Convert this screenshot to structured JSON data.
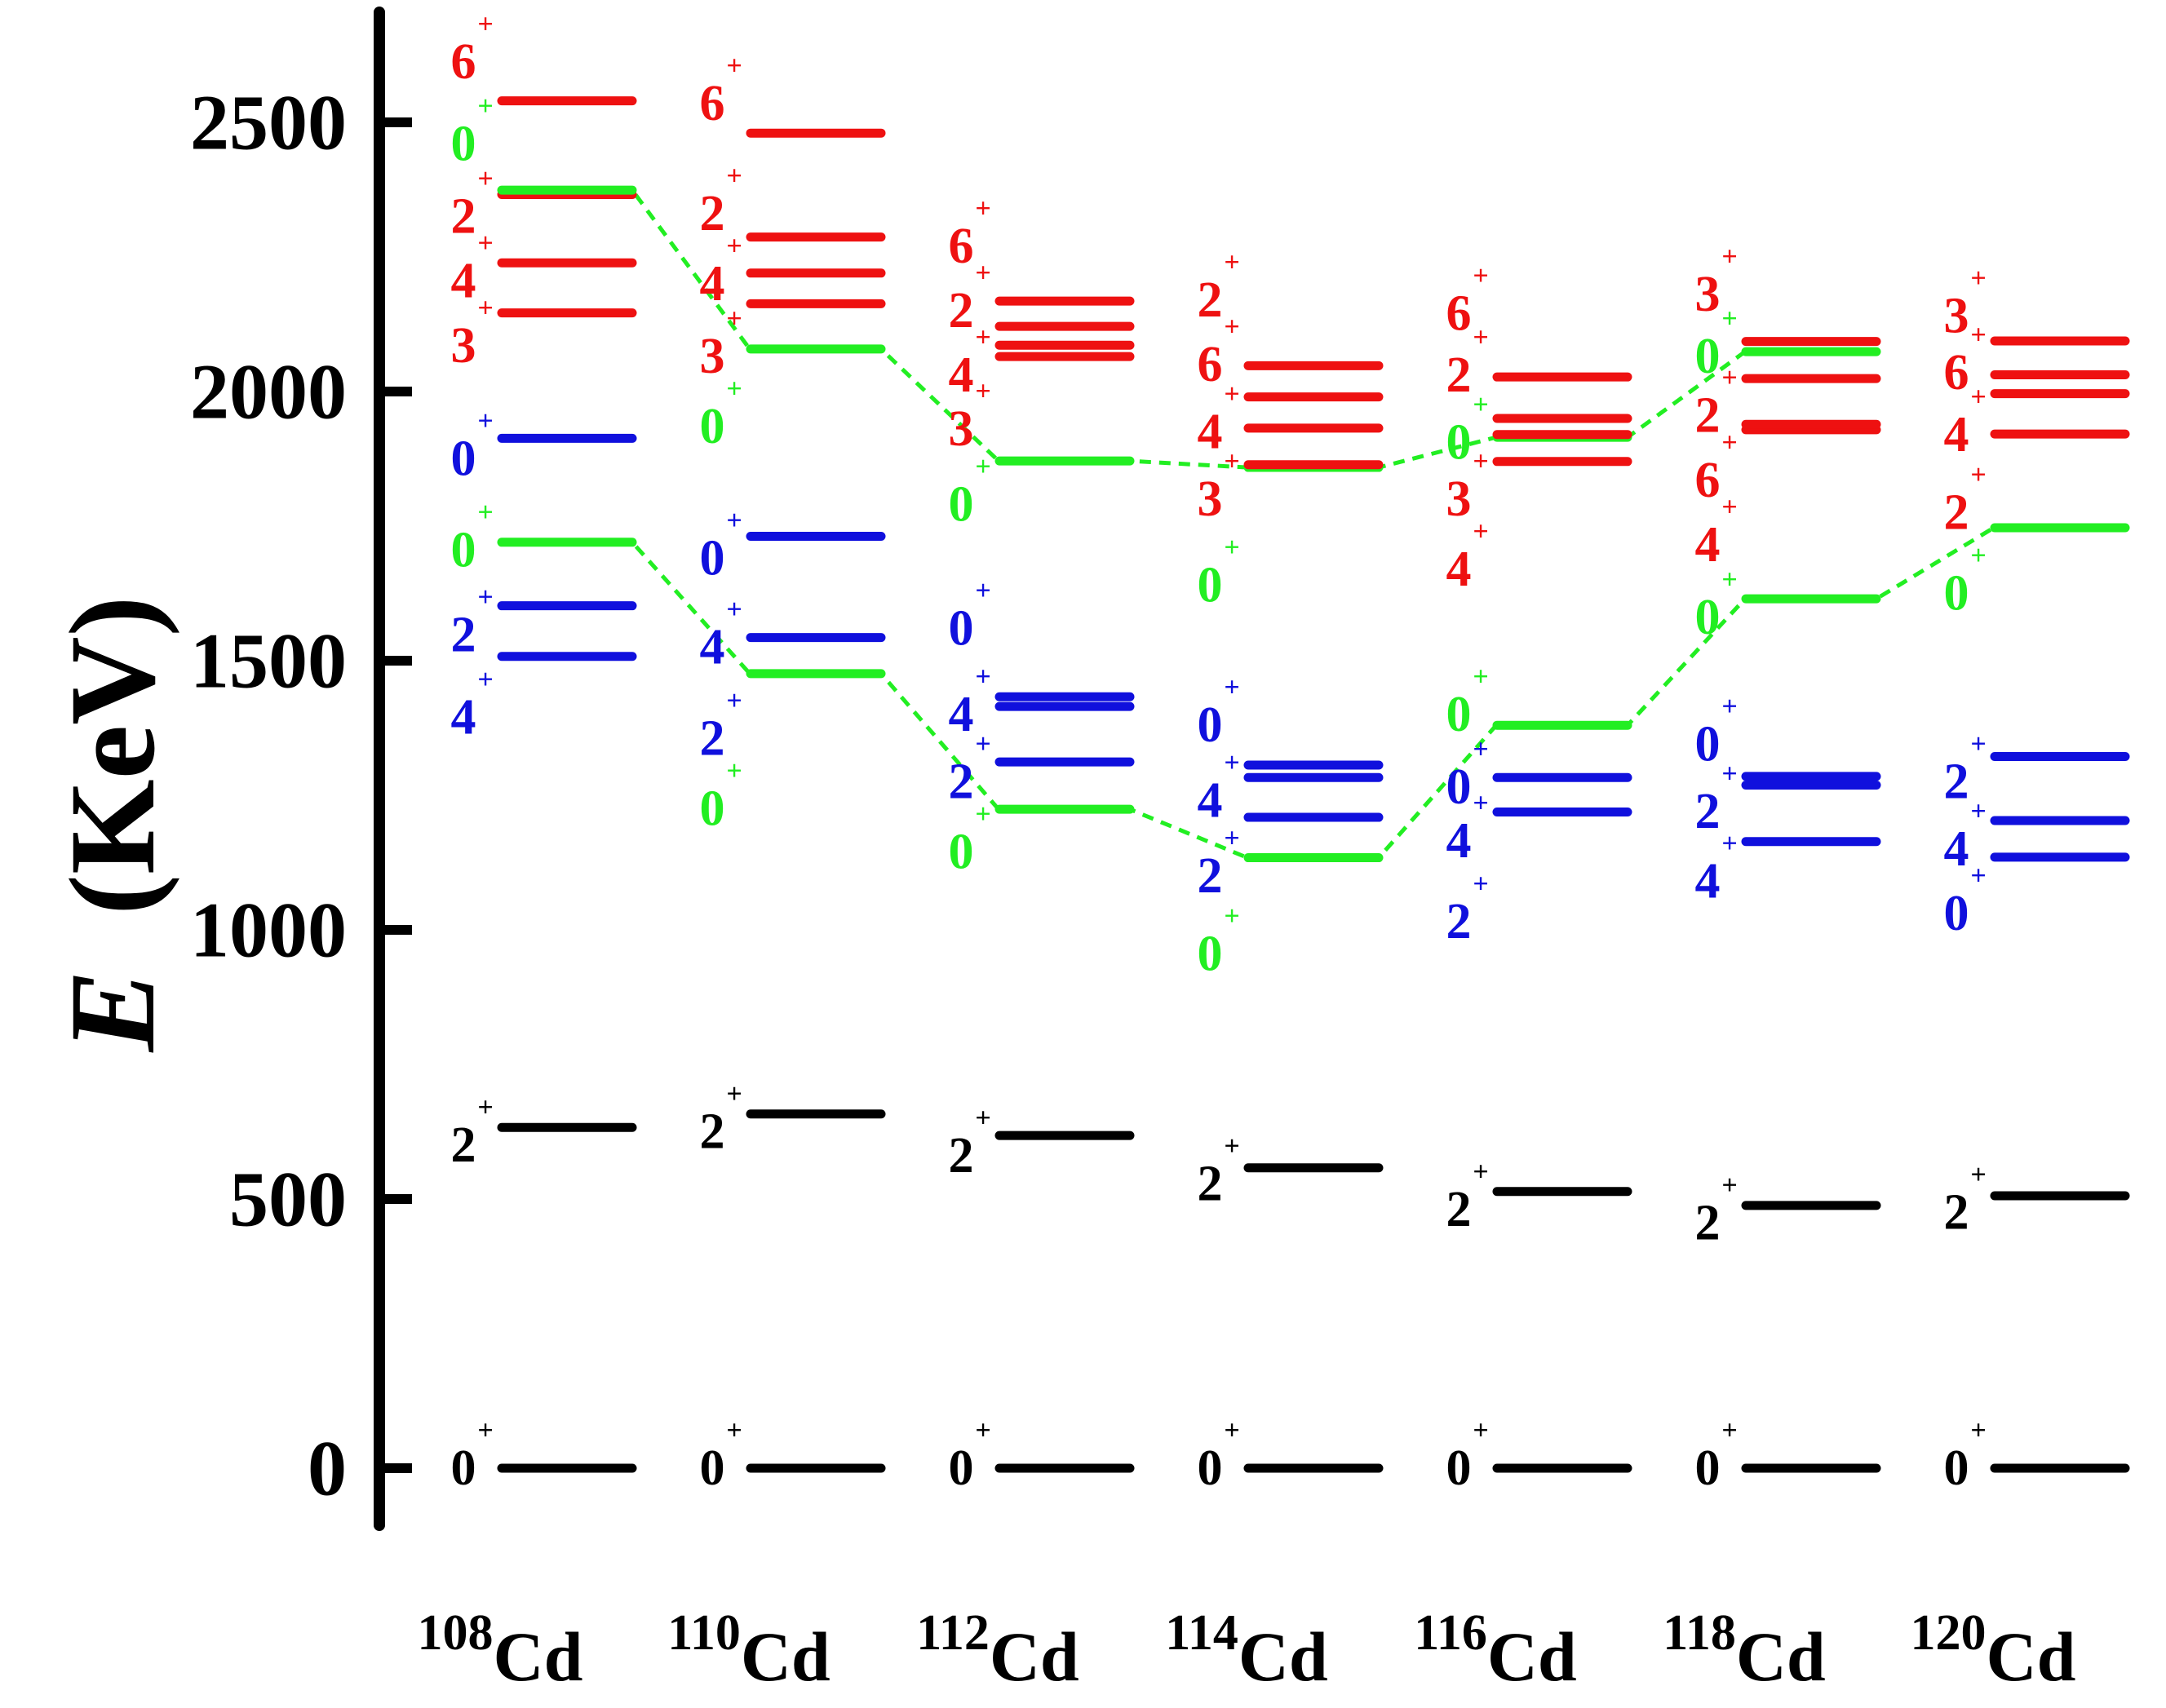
{
  "chart_data": {
    "type": "level-scheme",
    "ylabel_symbol": "E",
    "ylabel_unit": "(KeV)",
    "ylim": [
      -100,
      2700
    ],
    "yticks": [
      0,
      500,
      1000,
      1500,
      2000,
      2500
    ],
    "ytick_labels": [
      "0",
      "500",
      "1000",
      "1500",
      "2000",
      "2500"
    ],
    "parity_symbol": "+",
    "colors": {
      "black": "#000000",
      "blue": "#1010dd",
      "green": "#22ee22",
      "red": "#ee1111"
    },
    "isotopes": [
      {
        "mass": "108",
        "element": "Cd",
        "levels": [
          {
            "energy": 0,
            "color": "black"
          },
          {
            "energy": 633,
            "color": "black"
          },
          {
            "energy": 1508,
            "color": "blue"
          },
          {
            "energy": 1602,
            "color": "blue"
          },
          {
            "energy": 1720,
            "color": "green"
          },
          {
            "energy": 1913,
            "color": "blue"
          },
          {
            "energy": 2146,
            "color": "red"
          },
          {
            "energy": 2239,
            "color": "red"
          },
          {
            "energy": 2366,
            "color": "red"
          },
          {
            "energy": 2374,
            "color": "green"
          },
          {
            "energy": 2540,
            "color": "red"
          }
        ],
        "labels": [
          {
            "spin": "0",
            "energy": 0,
            "color": "black"
          },
          {
            "spin": "2",
            "energy": 600,
            "color": "black"
          },
          {
            "spin": "4",
            "energy": 1395,
            "color": "blue"
          },
          {
            "spin": "2",
            "energy": 1548,
            "color": "blue"
          },
          {
            "spin": "0",
            "energy": 1705,
            "color": "green"
          },
          {
            "spin": "0",
            "energy": 1875,
            "color": "blue"
          },
          {
            "spin": "3",
            "energy": 2085,
            "color": "red"
          },
          {
            "spin": "4",
            "energy": 2205,
            "color": "red"
          },
          {
            "spin": "2",
            "energy": 2325,
            "color": "red"
          },
          {
            "spin": "0",
            "energy": 2460,
            "color": "green"
          },
          {
            "spin": "6",
            "energy": 2612,
            "color": "red"
          }
        ]
      },
      {
        "mass": "110",
        "element": "Cd",
        "levels": [
          {
            "energy": 0,
            "color": "black"
          },
          {
            "energy": 658,
            "color": "black"
          },
          {
            "energy": 1476,
            "color": "green"
          },
          {
            "energy": 1543,
            "color": "blue"
          },
          {
            "energy": 1731,
            "color": "blue"
          },
          {
            "energy": 2079,
            "color": "green"
          },
          {
            "energy": 2163,
            "color": "red"
          },
          {
            "energy": 2220,
            "color": "red"
          },
          {
            "energy": 2287,
            "color": "red"
          },
          {
            "energy": 2480,
            "color": "red"
          }
        ],
        "labels": [
          {
            "spin": "0",
            "energy": 0,
            "color": "black"
          },
          {
            "spin": "2",
            "energy": 625,
            "color": "black"
          },
          {
            "spin": "0",
            "energy": 1225,
            "color": "green"
          },
          {
            "spin": "2",
            "energy": 1355,
            "color": "blue"
          },
          {
            "spin": "4",
            "energy": 1525,
            "color": "blue"
          },
          {
            "spin": "0",
            "energy": 1690,
            "color": "blue"
          },
          {
            "spin": "0",
            "energy": 1935,
            "color": "green"
          },
          {
            "spin": "3",
            "energy": 2065,
            "color": "red"
          },
          {
            "spin": "4",
            "energy": 2200,
            "color": "red"
          },
          {
            "spin": "2",
            "energy": 2330,
            "color": "red"
          },
          {
            "spin": "6",
            "energy": 2535,
            "color": "red"
          }
        ]
      },
      {
        "mass": "112",
        "element": "Cd",
        "levels": [
          {
            "energy": 0,
            "color": "black"
          },
          {
            "energy": 618,
            "color": "black"
          },
          {
            "energy": 1224,
            "color": "green"
          },
          {
            "energy": 1312,
            "color": "blue"
          },
          {
            "energy": 1415,
            "color": "blue"
          },
          {
            "energy": 1433,
            "color": "blue"
          },
          {
            "energy": 1871,
            "color": "green"
          },
          {
            "energy": 2065,
            "color": "red"
          },
          {
            "energy": 2086,
            "color": "red"
          },
          {
            "energy": 2121,
            "color": "red"
          },
          {
            "energy": 2168,
            "color": "red"
          }
        ],
        "labels": [
          {
            "spin": "0",
            "energy": 0,
            "color": "black"
          },
          {
            "spin": "2",
            "energy": 580,
            "color": "black"
          },
          {
            "spin": "0",
            "energy": 1145,
            "color": "green"
          },
          {
            "spin": "2",
            "energy": 1275,
            "color": "blue"
          },
          {
            "spin": "4",
            "energy": 1400,
            "color": "blue"
          },
          {
            "spin": "0",
            "energy": 1560,
            "color": "blue"
          },
          {
            "spin": "0",
            "energy": 1790,
            "color": "green"
          },
          {
            "spin": "3",
            "energy": 1930,
            "color": "red"
          },
          {
            "spin": "4",
            "energy": 2030,
            "color": "red"
          },
          {
            "spin": "2",
            "energy": 2150,
            "color": "red"
          },
          {
            "spin": "6",
            "energy": 2270,
            "color": "red"
          }
        ]
      },
      {
        "mass": "114",
        "element": "Cd",
        "levels": [
          {
            "energy": 0,
            "color": "black"
          },
          {
            "energy": 558,
            "color": "black"
          },
          {
            "energy": 1134,
            "color": "green"
          },
          {
            "energy": 1209,
            "color": "blue"
          },
          {
            "energy": 1283,
            "color": "blue"
          },
          {
            "energy": 1306,
            "color": "blue"
          },
          {
            "energy": 1859,
            "color": "green"
          },
          {
            "energy": 1864,
            "color": "red"
          },
          {
            "energy": 1932,
            "color": "red"
          },
          {
            "energy": 1990,
            "color": "red"
          },
          {
            "energy": 2048,
            "color": "red"
          }
        ],
        "labels": [
          {
            "spin": "0",
            "energy": 0,
            "color": "black"
          },
          {
            "spin": "0",
            "energy": 955,
            "color": "green"
          },
          {
            "spin": "2",
            "energy": 528,
            "color": "black"
          },
          {
            "spin": "2",
            "energy": 1100,
            "color": "blue"
          },
          {
            "spin": "4",
            "energy": 1240,
            "color": "blue"
          },
          {
            "spin": "0",
            "energy": 1380,
            "color": "blue"
          },
          {
            "spin": "0",
            "energy": 1640,
            "color": "green"
          },
          {
            "spin": "3",
            "energy": 1800,
            "color": "red"
          },
          {
            "spin": "4",
            "energy": 1925,
            "color": "red"
          },
          {
            "spin": "6",
            "energy": 2050,
            "color": "red"
          },
          {
            "spin": "2",
            "energy": 2170,
            "color": "red"
          }
        ]
      },
      {
        "mass": "116",
        "element": "Cd",
        "levels": [
          {
            "energy": 0,
            "color": "black"
          },
          {
            "energy": 514,
            "color": "black"
          },
          {
            "energy": 1219,
            "color": "blue"
          },
          {
            "energy": 1283,
            "color": "blue"
          },
          {
            "energy": 1380,
            "color": "green"
          },
          {
            "energy": 1870,
            "color": "red"
          },
          {
            "energy": 1915,
            "color": "green"
          },
          {
            "energy": 1920,
            "color": "red"
          },
          {
            "energy": 1950,
            "color": "red"
          },
          {
            "energy": 2027,
            "color": "red"
          }
        ],
        "labels": [
          {
            "spin": "0",
            "energy": 0,
            "color": "black"
          },
          {
            "spin": "2",
            "energy": 480,
            "color": "black"
          },
          {
            "spin": "2",
            "energy": 1015,
            "color": "blue"
          },
          {
            "spin": "4",
            "energy": 1165,
            "color": "blue"
          },
          {
            "spin": "0",
            "energy": 1265,
            "color": "blue"
          },
          {
            "spin": "0",
            "energy": 1400,
            "color": "green"
          },
          {
            "spin": "4",
            "energy": 1670,
            "color": "red"
          },
          {
            "spin": "3",
            "energy": 1800,
            "color": "red"
          },
          {
            "spin": "0",
            "energy": 1905,
            "color": "green"
          },
          {
            "spin": "2",
            "energy": 2030,
            "color": "red"
          },
          {
            "spin": "6",
            "energy": 2145,
            "color": "red"
          }
        ]
      },
      {
        "mass": "118",
        "element": "Cd",
        "levels": [
          {
            "energy": 0,
            "color": "black"
          },
          {
            "energy": 488,
            "color": "black"
          },
          {
            "energy": 1164,
            "color": "blue"
          },
          {
            "energy": 1269,
            "color": "blue"
          },
          {
            "energy": 1285,
            "color": "blue"
          },
          {
            "energy": 1615,
            "color": "green"
          },
          {
            "energy": 1929,
            "color": "red"
          },
          {
            "energy": 1939,
            "color": "red"
          },
          {
            "energy": 2024,
            "color": "red"
          },
          {
            "energy": 2074,
            "color": "green"
          },
          {
            "energy": 2093,
            "color": "red"
          }
        ],
        "labels": [
          {
            "spin": "0",
            "energy": 0,
            "color": "black"
          },
          {
            "spin": "2",
            "energy": 455,
            "color": "black"
          },
          {
            "spin": "4",
            "energy": 1090,
            "color": "blue"
          },
          {
            "spin": "2",
            "energy": 1220,
            "color": "blue"
          },
          {
            "spin": "0",
            "energy": 1345,
            "color": "blue"
          },
          {
            "spin": "0",
            "energy": 1580,
            "color": "green"
          },
          {
            "spin": "4",
            "energy": 1715,
            "color": "red"
          },
          {
            "spin": "6",
            "energy": 1835,
            "color": "red"
          },
          {
            "spin": "2",
            "energy": 1955,
            "color": "red"
          },
          {
            "spin": "0",
            "energy": 2065,
            "color": "green"
          },
          {
            "spin": "3",
            "energy": 2180,
            "color": "red"
          }
        ]
      },
      {
        "mass": "120",
        "element": "Cd",
        "levels": [
          {
            "energy": 0,
            "color": "black"
          },
          {
            "energy": 506,
            "color": "black"
          },
          {
            "energy": 1135,
            "color": "blue"
          },
          {
            "energy": 1203,
            "color": "blue"
          },
          {
            "energy": 1322,
            "color": "blue"
          },
          {
            "energy": 1747,
            "color": "green"
          },
          {
            "energy": 1921,
            "color": "red"
          },
          {
            "energy": 1996,
            "color": "red"
          },
          {
            "energy": 2031,
            "color": "red"
          },
          {
            "energy": 2094,
            "color": "red"
          }
        ],
        "labels": [
          {
            "spin": "0",
            "energy": 0,
            "color": "black"
          },
          {
            "spin": "2",
            "energy": 475,
            "color": "black"
          },
          {
            "spin": "0",
            "energy": 1030,
            "color": "blue"
          },
          {
            "spin": "4",
            "energy": 1150,
            "color": "blue"
          },
          {
            "spin": "2",
            "energy": 1275,
            "color": "blue"
          },
          {
            "spin": "0",
            "energy": 1625,
            "color": "green"
          },
          {
            "spin": "2",
            "energy": 1775,
            "color": "red"
          },
          {
            "spin": "4",
            "energy": 1920,
            "color": "red"
          },
          {
            "spin": "6",
            "energy": 2035,
            "color": "red"
          },
          {
            "spin": "3",
            "energy": 2140,
            "color": "red"
          }
        ]
      }
    ],
    "dashed_connections": [
      {
        "color": "green",
        "points": [
          {
            "isotope": 0,
            "energy": 1720
          },
          {
            "isotope": 1,
            "energy": 1476
          },
          {
            "isotope": 2,
            "energy": 1224
          },
          {
            "isotope": 3,
            "energy": 1134
          },
          {
            "isotope": 4,
            "energy": 1380
          },
          {
            "isotope": 5,
            "energy": 1615
          },
          {
            "isotope": 6,
            "energy": 1747
          }
        ]
      },
      {
        "color": "green",
        "points": [
          {
            "isotope": 0,
            "energy": 2374
          },
          {
            "isotope": 1,
            "energy": 2079
          },
          {
            "isotope": 2,
            "energy": 1871
          },
          {
            "isotope": 3,
            "energy": 1859
          },
          {
            "isotope": 4,
            "energy": 1915
          },
          {
            "isotope": 5,
            "energy": 2074
          }
        ]
      }
    ]
  }
}
